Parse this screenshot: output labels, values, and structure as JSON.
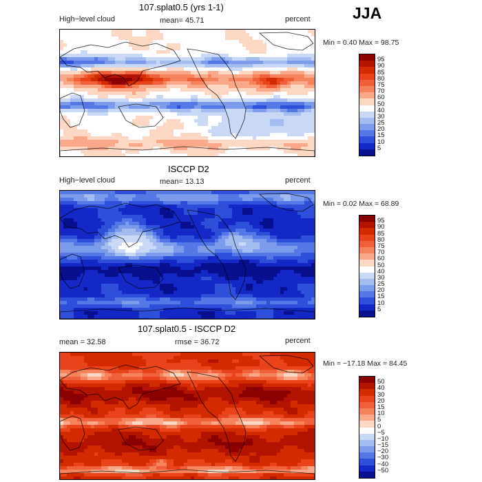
{
  "season": "JJA",
  "panels": [
    {
      "id": "model",
      "title": "107.splat0.5 (yrs 1-1)",
      "left_label": "High−level cloud",
      "stat_label": "mean=  45.71",
      "units": "percent",
      "minmax": "Min =    0.40 Max =   98.75",
      "field_style": "model"
    },
    {
      "id": "obs",
      "title": "ISCCP D2",
      "left_label": "High−level cloud",
      "stat_label": "mean=  13.13",
      "units": "percent",
      "minmax": "Min =    0.02 Max =   68.89",
      "field_style": "obs"
    },
    {
      "id": "diff",
      "title": "107.splat0.5 - ISCCP D2",
      "left_label": "mean =   32.58",
      "stat_label": "rmse =   36.72",
      "units": "percent",
      "minmax": "Min = −17.18 Max =   84.45",
      "field_style": "diff"
    }
  ],
  "colorbar_abs": {
    "labels": [
      "95",
      "90",
      "85",
      "80",
      "75",
      "70",
      "60",
      "50",
      "40",
      "30",
      "25",
      "20",
      "15",
      "10",
      "5"
    ],
    "colors": [
      "#8b0000",
      "#b31400",
      "#d42a00",
      "#e8431a",
      "#f0603a",
      "#f5835c",
      "#f9a98a",
      "#fcd8c4",
      "#ffffff",
      "#c9d8f5",
      "#a3bdf0",
      "#7c9ceb",
      "#5478e6",
      "#2e4fd9",
      "#1428c8",
      "#08108f"
    ]
  },
  "colorbar_diff": {
    "labels": [
      "50",
      "40",
      "30",
      "20",
      "15",
      "10",
      "5",
      "0",
      "−5",
      "−10",
      "−15",
      "−20",
      "−30",
      "−40",
      "−50"
    ],
    "colors": [
      "#8b0000",
      "#b31400",
      "#d42a00",
      "#e8431a",
      "#f0603a",
      "#f5835c",
      "#f9a98a",
      "#fcd8c4",
      "#ffffff",
      "#c9d8f5",
      "#a3bdf0",
      "#7c9ceb",
      "#5478e6",
      "#2e4fd9",
      "#1428c8",
      "#08108f"
    ]
  }
}
